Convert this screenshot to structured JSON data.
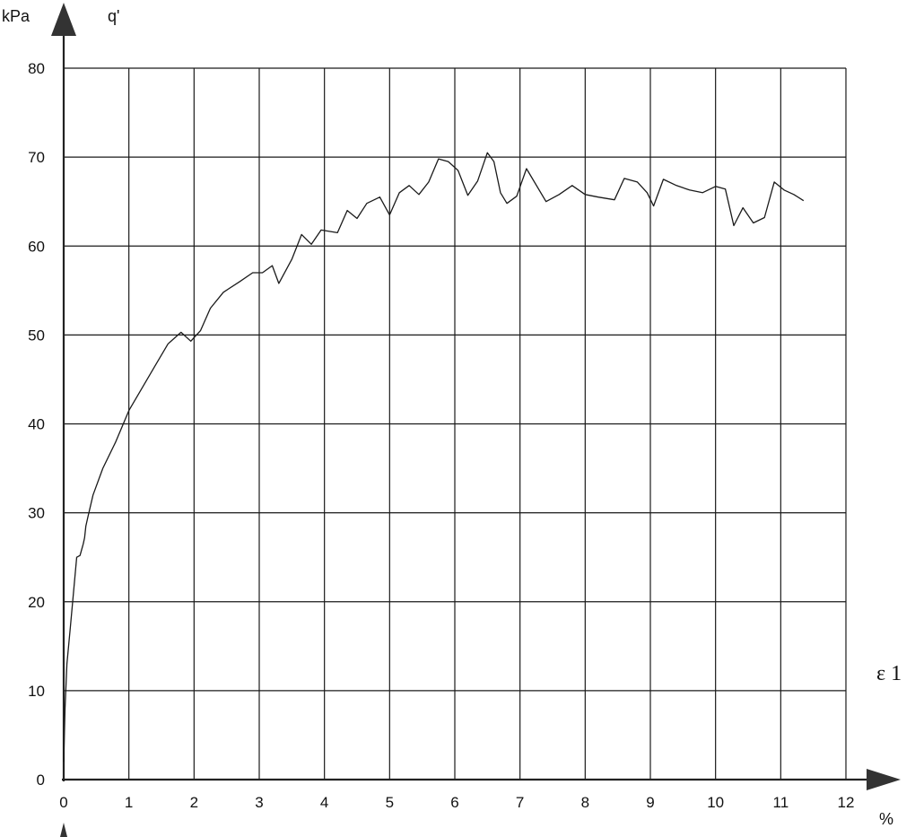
{
  "chart_data": {
    "type": "line",
    "title": "",
    "y_unit_label": "kPa",
    "y_symbol_label": "q'",
    "x_symbol_label": "ε 1",
    "x_unit_label": "%",
    "xlim": [
      0,
      12
    ],
    "ylim": [
      0,
      80
    ],
    "x_ticks": [
      0,
      1,
      2,
      3,
      4,
      5,
      6,
      7,
      8,
      9,
      10,
      11,
      12
    ],
    "y_ticks": [
      0,
      10,
      20,
      30,
      40,
      50,
      60,
      70,
      80
    ],
    "grid": true,
    "series": [
      {
        "x": [
          0,
          0.02,
          0.05,
          0.1,
          0.15,
          0.2,
          0.25,
          0.3,
          0.32,
          0.34,
          0.37,
          0.45,
          0.6,
          0.8,
          1.0,
          1.2,
          1.4,
          1.6,
          1.8,
          1.95,
          2.1,
          2.25,
          2.45,
          2.7,
          2.9,
          3.05,
          3.2,
          3.3,
          3.5,
          3.65,
          3.8,
          3.95,
          4.2,
          4.35,
          4.5,
          4.65,
          4.85,
          5.0,
          5.15,
          5.3,
          5.45,
          5.6,
          5.75,
          5.9,
          6.05,
          6.2,
          6.35,
          6.5,
          6.6,
          6.7,
          6.8,
          6.95,
          7.1,
          7.4,
          7.6,
          7.8,
          8.0,
          8.2,
          8.45,
          8.6,
          8.8,
          8.95,
          9.05,
          9.2,
          9.4,
          9.6,
          9.8,
          10.0,
          10.15,
          10.28,
          10.42,
          10.58,
          10.75,
          10.9,
          11.05,
          11.2,
          11.35
        ],
        "y": [
          2,
          8,
          13,
          17,
          21,
          25,
          25.2,
          26.5,
          27.2,
          28.5,
          29.5,
          32,
          35,
          38,
          41.5,
          44,
          46.5,
          49,
          50.3,
          49.3,
          50.5,
          53,
          54.8,
          56,
          57,
          57,
          57.8,
          55.8,
          58.5,
          61.3,
          60.2,
          61.8,
          61.5,
          64,
          63.1,
          64.8,
          65.5,
          63.5,
          66,
          66.8,
          65.8,
          67.2,
          69.8,
          69.5,
          68.5,
          65.7,
          67.3,
          70.5,
          69.5,
          66,
          64.8,
          65.6,
          68.7,
          65,
          65.8,
          66.8,
          65.8,
          65.5,
          65.2,
          67.6,
          67.2,
          66,
          64.5,
          67.5,
          66.8,
          66.3,
          66,
          66.7,
          66.4,
          62.3,
          64.3,
          62.6,
          63.2,
          67.2,
          66.3,
          65.8,
          65.1
        ]
      }
    ]
  }
}
